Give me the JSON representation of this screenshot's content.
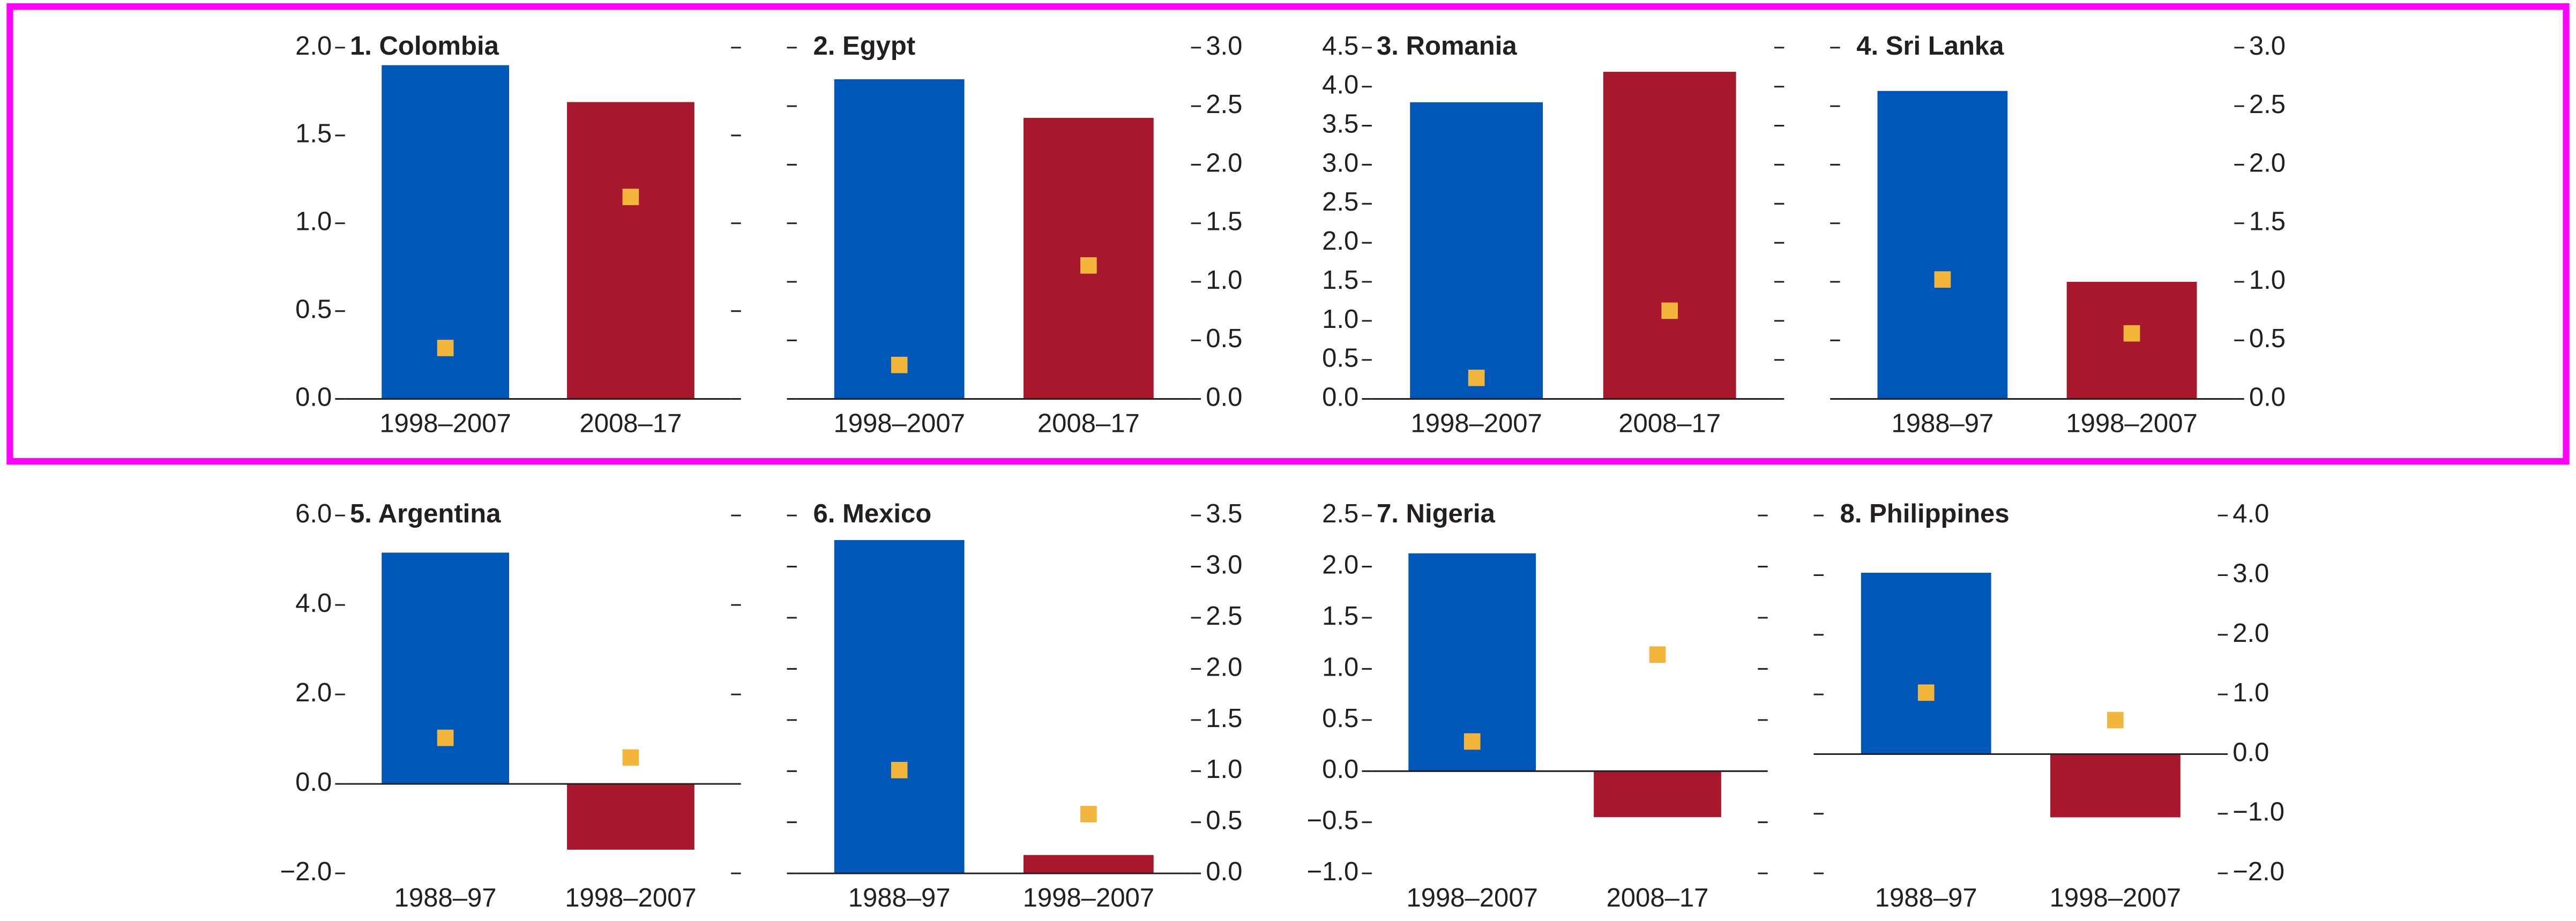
{
  "chart_data": [
    {
      "type": "bar",
      "title": "1. Colombia",
      "categories": [
        "1998–2007",
        "2008–17"
      ],
      "values": [
        1.9,
        1.69
      ],
      "colors": [
        "#0057b8",
        "#a8182c"
      ],
      "marker_values": [
        0.29,
        1.15
      ],
      "marker_color": "#f2b63c",
      "y_axis_side": "left",
      "ylim": [
        0,
        2.0
      ],
      "yticks": [
        {
          "value": 0,
          "label": "0.0"
        },
        {
          "value": 0.5,
          "label": "0.5"
        },
        {
          "value": 1,
          "label": "1.0"
        },
        {
          "value": 1.5,
          "label": "1.5"
        },
        {
          "value": 2,
          "label": "2.0"
        }
      ]
    },
    {
      "type": "bar",
      "title": "2. Egypt",
      "categories": [
        "1998–2007",
        "2008–17"
      ],
      "values": [
        2.73,
        2.4
      ],
      "colors": [
        "#0057b8",
        "#a8182c"
      ],
      "marker_values": [
        0.29,
        1.14
      ],
      "marker_color": "#f2b63c",
      "y_axis_side": "right",
      "ylim": [
        0,
        3.0
      ],
      "yticks": [
        {
          "value": 0,
          "label": "0.0"
        },
        0.5,
        {
          "value": 1,
          "label": "1.0"
        },
        1.5,
        {
          "value": 2,
          "label": "2.0"
        },
        2.5,
        {
          "value": 3,
          "label": "3.0"
        }
      ]
    },
    {
      "type": "bar",
      "title": "3. Romania",
      "categories": [
        "1998–2007",
        "2008–17"
      ],
      "values": [
        3.8,
        4.19
      ],
      "colors": [
        "#0057b8",
        "#a8182c"
      ],
      "marker_values": [
        0.27,
        1.13
      ],
      "marker_color": "#f2b63c",
      "y_axis_side": "left",
      "ylim": [
        0,
        4.5
      ],
      "yticks": [
        {
          "value": 0,
          "label": "0.0"
        },
        0.5,
        {
          "value": 1,
          "label": "1.0"
        },
        1.5,
        {
          "value": 2,
          "label": "2.0"
        },
        2.5,
        {
          "value": 3,
          "label": "3.0"
        },
        3.5,
        {
          "value": 4,
          "label": "4.0"
        },
        4.5
      ]
    },
    {
      "type": "bar",
      "title": "4. Sri Lanka",
      "categories": [
        "1988–97",
        "1998–2007"
      ],
      "values": [
        2.63,
        1.0
      ],
      "colors": [
        "#0057b8",
        "#a8182c"
      ],
      "marker_values": [
        1.02,
        0.56
      ],
      "marker_color": "#f2b63c",
      "y_axis_side": "right",
      "ylim": [
        0,
        3.0
      ],
      "yticks": [
        {
          "value": 0,
          "label": "0.0"
        },
        0.5,
        {
          "value": 1,
          "label": "1.0"
        },
        1.5,
        {
          "value": 2,
          "label": "2.0"
        },
        2.5,
        {
          "value": 3,
          "label": "3.0"
        }
      ]
    },
    {
      "type": "bar",
      "title": "5. Argentina",
      "categories": [
        "1988–97",
        "1998–2007"
      ],
      "values": [
        5.17,
        -1.47
      ],
      "colors": [
        "#0057b8",
        "#a8182c"
      ],
      "marker_values": [
        1.03,
        0.59
      ],
      "marker_color": "#f2b63c",
      "y_axis_side": "left",
      "ylim": [
        -2.0,
        6.0
      ],
      "yticks": [
        {
          "value": -2,
          "label": "−2.0"
        },
        {
          "value": 0,
          "label": "0.0"
        },
        {
          "value": 2,
          "label": "2.0"
        },
        {
          "value": 4,
          "label": "4.0"
        },
        {
          "value": 6,
          "label": "6.0"
        }
      ]
    },
    {
      "type": "bar",
      "title": "6. Mexico",
      "categories": [
        "1988–97",
        "1998–2007"
      ],
      "values": [
        3.26,
        0.18
      ],
      "colors": [
        "#0057b8",
        "#a8182c"
      ],
      "marker_values": [
        1.01,
        0.58
      ],
      "marker_color": "#f2b63c",
      "y_axis_side": "right",
      "ylim": [
        0,
        3.5
      ],
      "yticks": [
        {
          "value": 0,
          "label": "0.0"
        },
        0.5,
        {
          "value": 1,
          "label": "1.0"
        },
        1.5,
        {
          "value": 2,
          "label": "2.0"
        },
        2.5,
        {
          "value": 3,
          "label": "3.0"
        },
        3.5
      ]
    },
    {
      "type": "bar",
      "title": "7. Nigeria",
      "categories": [
        "1998–2007",
        "2008–17"
      ],
      "values": [
        2.13,
        -0.45
      ],
      "colors": [
        "#0057b8",
        "#a8182c"
      ],
      "marker_values": [
        0.29,
        1.14
      ],
      "marker_color": "#f2b63c",
      "y_axis_side": "left",
      "ylim": [
        -1.0,
        2.5
      ],
      "yticks": [
        {
          "value": -1,
          "label": "−1.0"
        },
        {
          "value": -0.5,
          "label": "−0.5"
        },
        {
          "value": 0,
          "label": "0.0"
        },
        0.5,
        {
          "value": 1,
          "label": "1.0"
        },
        1.5,
        {
          "value": 2,
          "label": "2.0"
        },
        2.5
      ]
    },
    {
      "type": "bar",
      "title": "8. Philippines",
      "categories": [
        "1988–97",
        "1998–2007"
      ],
      "values": [
        3.04,
        -1.06
      ],
      "colors": [
        "#0057b8",
        "#a8182c"
      ],
      "marker_values": [
        1.03,
        0.57
      ],
      "marker_color": "#f2b63c",
      "y_axis_side": "right",
      "ylim": [
        -2.0,
        4.0
      ],
      "yticks": [
        {
          "value": -2,
          "label": "−2.0"
        },
        {
          "value": -1,
          "label": "−1.0"
        },
        {
          "value": 0,
          "label": "0.0"
        },
        {
          "value": 1,
          "label": "1.0"
        },
        {
          "value": 2,
          "label": "2.0"
        },
        {
          "value": 3,
          "label": "3.0"
        },
        {
          "value": 4,
          "label": "4.0"
        }
      ]
    }
  ]
}
